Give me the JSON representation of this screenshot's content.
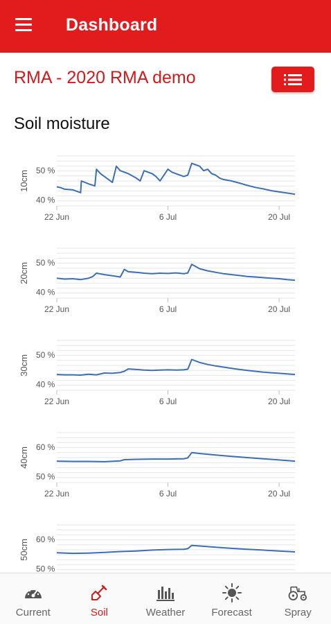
{
  "appbar": {
    "title": "Dashboard"
  },
  "site": {
    "title": "RMA - 2020 RMA demo"
  },
  "section": {
    "title": "Soil moisture"
  },
  "colors": {
    "brand_red": "#e21c1c",
    "series": "#3a6fb8",
    "nav_inactive": "#666666"
  },
  "chart_data": [
    {
      "type": "line",
      "ylabel": "10cm",
      "yticks": [
        "50 %",
        "40 %"
      ],
      "ytick_values": [
        50,
        40
      ],
      "ylim": [
        38,
        55
      ],
      "xticks": [
        "22 Jun",
        "6 Jul",
        "20 Jul"
      ],
      "xtick_values": [
        0,
        14,
        28
      ],
      "xlim": [
        0,
        30
      ],
      "x": [
        0,
        0.5,
        1,
        2,
        3,
        3.1,
        4,
        4.8,
        5,
        5.5,
        6,
        7,
        7.5,
        8,
        8.5,
        9,
        10,
        10.5,
        11,
        12,
        12.5,
        13,
        14,
        14.5,
        15,
        16,
        16.5,
        17,
        18,
        18.5,
        19,
        19.5,
        20,
        20.5,
        21,
        22,
        23,
        24,
        25,
        26,
        27,
        28,
        29,
        30
      ],
      "values": [
        44.5,
        44.2,
        43.7,
        43.5,
        42.5,
        46.5,
        45.5,
        44.8,
        50.5,
        49,
        48,
        46,
        51.5,
        50,
        49.5,
        49,
        47.5,
        46.5,
        50,
        49,
        48,
        46.5,
        50.5,
        49.5,
        49,
        48,
        48.5,
        52.5,
        51.5,
        50,
        50.5,
        49,
        48.5,
        47.5,
        47,
        46.5,
        45.8,
        45,
        44.3,
        43.8,
        43.2,
        42.8,
        42.4,
        42
      ]
    },
    {
      "type": "line",
      "ylabel": "20cm",
      "yticks": [
        "50 %",
        "40 %"
      ],
      "ytick_values": [
        50,
        40
      ],
      "ylim": [
        38,
        55
      ],
      "xticks": [
        "22 Jun",
        "6 Jul",
        "20 Jul"
      ],
      "xtick_values": [
        0,
        14,
        28
      ],
      "xlim": [
        0,
        30
      ],
      "x": [
        0,
        1,
        2,
        3,
        4,
        4.5,
        5,
        6,
        7,
        8,
        8.5,
        9,
        10,
        11,
        12,
        13,
        14,
        15,
        16,
        16.5,
        17,
        18,
        19,
        20,
        21,
        22,
        23,
        24,
        25,
        26,
        27,
        28,
        29,
        30
      ],
      "values": [
        44.8,
        44.5,
        44.6,
        44.3,
        44.8,
        45.3,
        46.5,
        46,
        45.6,
        45.2,
        47.8,
        47,
        46.8,
        46.5,
        46.3,
        46.5,
        46.4,
        46.6,
        46.3,
        46.6,
        49.5,
        48,
        47.3,
        46.8,
        46.3,
        46,
        45.7,
        45.4,
        45.2,
        45,
        44.8,
        44.6,
        44.3,
        44.1
      ]
    },
    {
      "type": "line",
      "ylabel": "30cm",
      "yticks": [
        "50 %",
        "40 %"
      ],
      "ytick_values": [
        50,
        40
      ],
      "ylim": [
        38,
        55
      ],
      "xticks": [
        "22 Jun",
        "6 Jul",
        "20 Jul"
      ],
      "xtick_values": [
        0,
        14,
        28
      ],
      "xlim": [
        0,
        30
      ],
      "x": [
        0,
        1,
        2,
        3,
        4,
        5,
        6,
        7,
        8,
        8.5,
        9,
        10,
        11,
        12,
        13,
        14,
        15,
        16,
        16.5,
        17,
        18,
        19,
        20,
        21,
        22,
        23,
        24,
        25,
        26,
        27,
        28,
        29,
        30
      ],
      "values": [
        43.4,
        43.3,
        43.3,
        43.2,
        43.5,
        43.3,
        43.9,
        43.8,
        44.1,
        44.5,
        45.3,
        45.1,
        44.9,
        44.8,
        44.9,
        45,
        44.9,
        45,
        45.2,
        48.5,
        47.5,
        46.8,
        46.3,
        45.9,
        45.5,
        45.1,
        44.8,
        44.5,
        44.2,
        44,
        43.8,
        43.6,
        43.4
      ]
    },
    {
      "type": "line",
      "ylabel": "40cm",
      "yticks": [
        "60 %",
        "50 %"
      ],
      "ytick_values": [
        60,
        50
      ],
      "ylim": [
        48,
        65
      ],
      "xticks": [
        "22 Jun",
        "6 Jul",
        "20 Jul"
      ],
      "xtick_values": [
        0,
        14,
        28
      ],
      "xlim": [
        0,
        30
      ],
      "x": [
        0,
        2,
        4,
        6,
        8,
        8.5,
        10,
        12,
        14,
        16,
        16.5,
        17,
        18,
        20,
        22,
        24,
        26,
        28,
        30
      ],
      "values": [
        55.3,
        55.2,
        55.2,
        55.1,
        55.4,
        55.8,
        55.9,
        56,
        56,
        56.1,
        56.4,
        58.2,
        57.9,
        57.4,
        56.9,
        56.5,
        56.1,
        55.7,
        55.3
      ]
    },
    {
      "type": "line",
      "ylabel": "50cm",
      "yticks": [
        "60 %",
        "50 %"
      ],
      "ytick_values": [
        60,
        50
      ],
      "ylim": [
        48,
        65
      ],
      "xticks": [],
      "xtick_values": [],
      "xlim": [
        0,
        30
      ],
      "x": [
        0,
        2,
        4,
        6,
        8,
        10,
        12,
        14,
        16,
        16.5,
        17,
        18,
        20,
        22,
        24,
        26,
        28,
        30
      ],
      "values": [
        55.5,
        55.3,
        55.4,
        55.6,
        55.9,
        56.1,
        56.4,
        56.6,
        56.7,
        56.9,
        58,
        57.8,
        57.4,
        57,
        56.7,
        56.4,
        56.1,
        55.8
      ]
    }
  ],
  "nav": [
    {
      "label": "Current",
      "icon": "gauge-icon"
    },
    {
      "label": "Soil",
      "icon": "shovel-icon"
    },
    {
      "label": "Weather",
      "icon": "bar-chart-icon"
    },
    {
      "label": "Forecast",
      "icon": "sun-icon"
    },
    {
      "label": "Spray",
      "icon": "tractor-icon"
    }
  ],
  "nav_active_index": 1
}
